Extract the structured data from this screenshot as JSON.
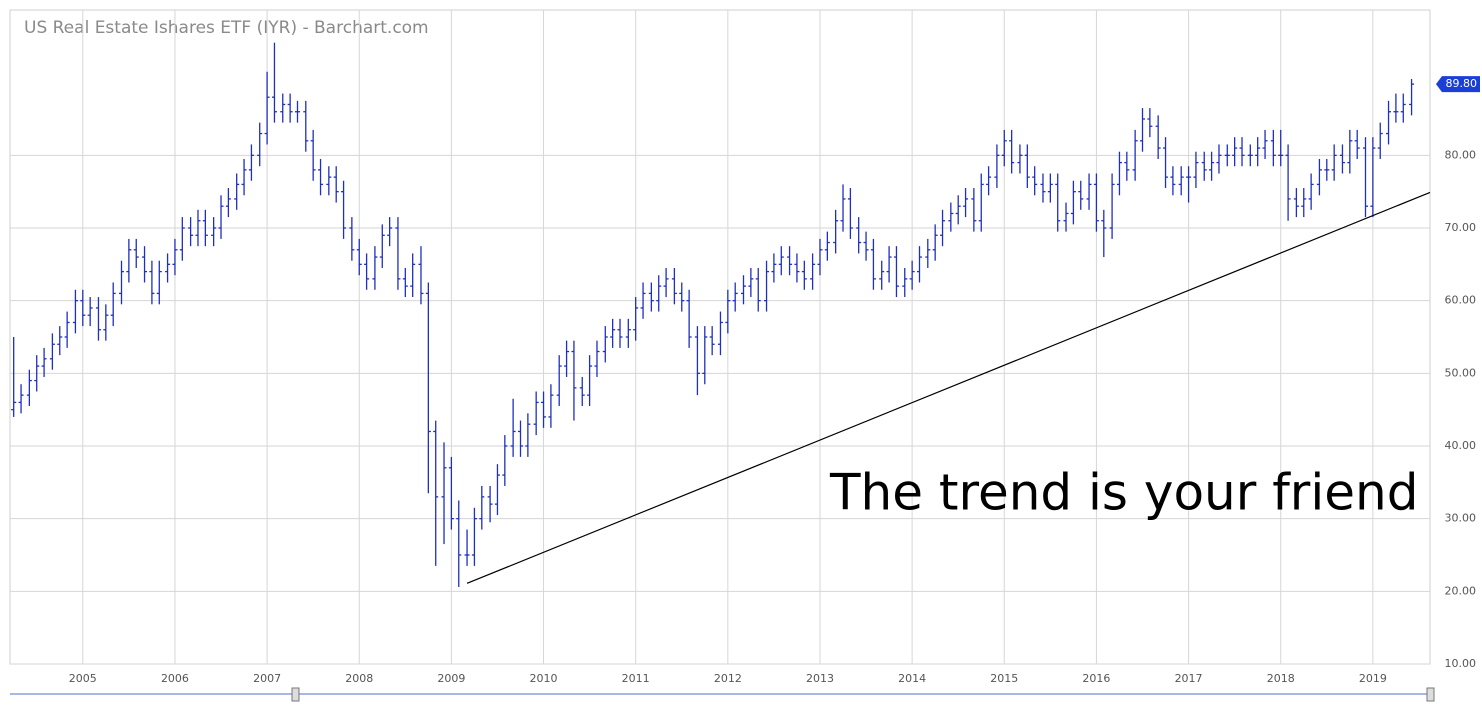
{
  "chart_data": {
    "type": "ohlc",
    "title": "US Real Estate Ishares ETF (IYR) - Barchart.com",
    "annotation": "The trend is your friend",
    "color": "#1f2fbf",
    "grid": true,
    "xlim": [
      2004.21,
      2019.62
    ],
    "xticks": [
      2005,
      2006,
      2007,
      2008,
      2009,
      2010,
      2011,
      2012,
      2013,
      2014,
      2015,
      2016,
      2017,
      2018,
      2019
    ],
    "ylim": [
      10,
      100
    ],
    "yticks": [
      {
        "value": 10,
        "label": "10.00"
      },
      {
        "value": 20,
        "label": "20.00"
      },
      {
        "value": 30,
        "label": "30.00"
      },
      {
        "value": 40,
        "label": "40.00"
      },
      {
        "value": 50,
        "label": "50.00"
      },
      {
        "value": 60,
        "label": "60.00"
      },
      {
        "value": 70,
        "label": "70.00"
      },
      {
        "value": 80,
        "label": "80.00"
      }
    ],
    "last_price": {
      "value": 89.8,
      "label": "89.80"
    },
    "trendline": {
      "x": [
        2009.17,
        2019.62
      ],
      "y": [
        21.1,
        74.9
      ]
    },
    "x": [
      2004.25,
      2004.33,
      2004.42,
      2004.5,
      2004.58,
      2004.67,
      2004.75,
      2004.83,
      2004.92,
      2005,
      2005.08,
      2005.17,
      2005.25,
      2005.33,
      2005.42,
      2005.5,
      2005.58,
      2005.67,
      2005.75,
      2005.83,
      2005.92,
      2006,
      2006.08,
      2006.17,
      2006.25,
      2006.33,
      2006.42,
      2006.5,
      2006.58,
      2006.67,
      2006.75,
      2006.83,
      2006.92,
      2007,
      2007.08,
      2007.17,
      2007.25,
      2007.33,
      2007.42,
      2007.5,
      2007.58,
      2007.67,
      2007.75,
      2007.83,
      2007.92,
      2008,
      2008.08,
      2008.17,
      2008.25,
      2008.33,
      2008.42,
      2008.5,
      2008.58,
      2008.67,
      2008.75,
      2008.83,
      2008.92,
      2009,
      2009.08,
      2009.17,
      2009.25,
      2009.33,
      2009.42,
      2009.5,
      2009.58,
      2009.67,
      2009.75,
      2009.83,
      2009.92,
      2010,
      2010.08,
      2010.17,
      2010.25,
      2010.33,
      2010.42,
      2010.5,
      2010.58,
      2010.67,
      2010.75,
      2010.83,
      2010.92,
      2011,
      2011.08,
      2011.17,
      2011.25,
      2011.33,
      2011.42,
      2011.5,
      2011.58,
      2011.67,
      2011.75,
      2011.83,
      2011.92,
      2012,
      2012.08,
      2012.17,
      2012.25,
      2012.33,
      2012.42,
      2012.5,
      2012.58,
      2012.67,
      2012.75,
      2012.83,
      2012.92,
      2013,
      2013.08,
      2013.17,
      2013.25,
      2013.33,
      2013.42,
      2013.5,
      2013.58,
      2013.67,
      2013.75,
      2013.83,
      2013.92,
      2014,
      2014.08,
      2014.17,
      2014.25,
      2014.33,
      2014.42,
      2014.5,
      2014.58,
      2014.67,
      2014.75,
      2014.83,
      2014.92,
      2015,
      2015.08,
      2015.17,
      2015.25,
      2015.33,
      2015.42,
      2015.5,
      2015.58,
      2015.67,
      2015.75,
      2015.83,
      2015.92,
      2016,
      2016.08,
      2016.17,
      2016.25,
      2016.33,
      2016.42,
      2016.5,
      2016.58,
      2016.67,
      2016.75,
      2016.83,
      2016.92,
      2017,
      2017.08,
      2017.17,
      2017.25,
      2017.33,
      2017.42,
      2017.5,
      2017.58,
      2017.67,
      2017.75,
      2017.83,
      2017.92,
      2018,
      2018.08,
      2018.17,
      2018.25,
      2018.33,
      2018.42,
      2018.5,
      2018.58,
      2018.67,
      2018.75,
      2018.83,
      2018.92,
      2019,
      2019.08,
      2019.17,
      2019.25,
      2019.33,
      2019.42
    ],
    "open": [
      45,
      46,
      47,
      49,
      51,
      52,
      54,
      55,
      57,
      60,
      58,
      59,
      56,
      58,
      61,
      64,
      67,
      66,
      64,
      61,
      64,
      65,
      67,
      70,
      69,
      71,
      69,
      70,
      73,
      74,
      76,
      78,
      80,
      83,
      88,
      86,
      87,
      86,
      86,
      82,
      78,
      76,
      77,
      75,
      70,
      67,
      65,
      63,
      66,
      69,
      70,
      63,
      62,
      65,
      61,
      42,
      33,
      37,
      30,
      25,
      25,
      30,
      33,
      32,
      36,
      40,
      42,
      40,
      43,
      46,
      44,
      47,
      51,
      53,
      48,
      47,
      51,
      53,
      55,
      56,
      55,
      56,
      59,
      61,
      60,
      62,
      63,
      61,
      60,
      55,
      50,
      55,
      54,
      57,
      60,
      61,
      62,
      63,
      60,
      64,
      65,
      66,
      65,
      64,
      63,
      65,
      67,
      68,
      71,
      74,
      70,
      68,
      67,
      63,
      64,
      66,
      62,
      63,
      64,
      66,
      67,
      69,
      71,
      72,
      73,
      74,
      71,
      76,
      77,
      80,
      82,
      79,
      80,
      77,
      76,
      75,
      76,
      71,
      72,
      75,
      74,
      76,
      71,
      70,
      76,
      79,
      78,
      82,
      85,
      84,
      81,
      77,
      76,
      77,
      77,
      79,
      78,
      79,
      80,
      80,
      81,
      80,
      80,
      81,
      82,
      80,
      80,
      74,
      73,
      74,
      76,
      78,
      78,
      80,
      79,
      82,
      81,
      73,
      81,
      83,
      86,
      86,
      87
    ],
    "high": [
      55,
      48.5,
      50.5,
      52.5,
      53.5,
      55.5,
      56.5,
      58.5,
      61.5,
      61.5,
      60.5,
      60.5,
      59.5,
      62.5,
      65.5,
      68.5,
      68.5,
      67.5,
      65.5,
      65.5,
      66.5,
      68.5,
      71.5,
      71.5,
      72.5,
      72.5,
      71.5,
      74.5,
      75.5,
      77.5,
      79.5,
      81.5,
      84.5,
      91.5,
      95.5,
      88.5,
      88.5,
      87.5,
      87.5,
      83.5,
      79.5,
      78.5,
      78.5,
      76.5,
      71.5,
      68.5,
      66.5,
      67.5,
      70.5,
      71.5,
      71.5,
      64.5,
      66.5,
      67.5,
      62.5,
      43.5,
      40.5,
      38.5,
      32.5,
      28.5,
      31.5,
      34.5,
      34.5,
      37.5,
      41.5,
      46.5,
      43.5,
      44.5,
      47.5,
      47.5,
      48.5,
      52.5,
      54.5,
      54.5,
      49.5,
      52.5,
      54.5,
      56.5,
      57.5,
      57.5,
      57.5,
      60.5,
      62.5,
      62.5,
      63.5,
      64.5,
      64.5,
      62.5,
      61.5,
      56.5,
      56.5,
      56.5,
      58.5,
      61.5,
      62.5,
      63.5,
      64.5,
      64.5,
      65.5,
      66.5,
      67.5,
      67.5,
      66.5,
      65.5,
      66.5,
      68.5,
      69.5,
      72.5,
      76,
      75.5,
      71.5,
      69.5,
      68.5,
      65.5,
      67.5,
      67.5,
      64.5,
      65.5,
      67.5,
      68.5,
      70.5,
      72.5,
      73.5,
      74.5,
      75.5,
      75.5,
      77.5,
      78.5,
      81.5,
      83.5,
      83.5,
      81.5,
      81.5,
      78.5,
      77.5,
      77.5,
      77.5,
      73.5,
      76.5,
      76.5,
      77.5,
      77.5,
      72.5,
      77.5,
      80.5,
      80.5,
      83.5,
      86.5,
      86.5,
      85.5,
      82.5,
      78.5,
      78.5,
      78.5,
      80.5,
      80.5,
      80.5,
      81.5,
      81.5,
      82.5,
      82.5,
      81.5,
      82.5,
      83.5,
      83.5,
      83.5,
      81.5,
      75.5,
      75.5,
      77.5,
      79.5,
      79.5,
      81.5,
      81.5,
      83.5,
      83.5,
      82.5,
      82.5,
      84.5,
      87.5,
      88.5,
      88.5,
      90.5
    ],
    "low": [
      44,
      44.5,
      45.5,
      47.5,
      49.5,
      50.5,
      52.5,
      53.5,
      55.5,
      56.5,
      56.5,
      54.5,
      54.5,
      56.5,
      59.5,
      62.5,
      64.5,
      62.5,
      59.5,
      59.5,
      62.5,
      63.5,
      65.5,
      67.5,
      67.5,
      67.5,
      67.5,
      68.5,
      71.5,
      72.5,
      74.5,
      76.5,
      78.5,
      81.5,
      84.5,
      84.5,
      84.5,
      84.5,
      80.5,
      76.5,
      74.5,
      74.5,
      73.5,
      68.5,
      65.5,
      63.5,
      61.5,
      61.5,
      64.5,
      67.5,
      61.5,
      60.5,
      60.5,
      59.5,
      33.5,
      23.5,
      26.5,
      28.5,
      20.6,
      23.5,
      23.5,
      28.5,
      29.5,
      30.5,
      34.5,
      38.5,
      38.5,
      38.5,
      41.5,
      42.5,
      42.5,
      45.5,
      49.5,
      43.5,
      45.5,
      45.5,
      49.5,
      51.5,
      53.5,
      53.5,
      53.5,
      54.5,
      57.5,
      58.5,
      58.5,
      60.5,
      59.5,
      58.5,
      53.5,
      47,
      48.5,
      52.5,
      52.5,
      55.5,
      58.5,
      59.5,
      60.5,
      58.5,
      58.5,
      62.5,
      63.5,
      63.5,
      62.5,
      61.5,
      61.5,
      63.5,
      65.5,
      66.5,
      69.5,
      68.5,
      66.5,
      65.5,
      61.5,
      61.5,
      62.5,
      60.5,
      60.5,
      61.5,
      62.5,
      64.5,
      65.5,
      67.5,
      69.5,
      70.5,
      71.5,
      69.5,
      69.5,
      74.5,
      75.5,
      78.5,
      77.5,
      77.5,
      75.5,
      74.5,
      73.5,
      73.5,
      69.5,
      69.5,
      70.5,
      72.5,
      72.5,
      69.5,
      66,
      68.5,
      74.5,
      76.5,
      76.5,
      80.5,
      82.5,
      79.5,
      75.5,
      74.5,
      74.5,
      73.5,
      75.5,
      76.5,
      76.5,
      77.5,
      78.5,
      78.5,
      78.5,
      78.5,
      78.5,
      79.5,
      78.5,
      78.5,
      71,
      71.5,
      71.5,
      72.5,
      74.5,
      76.5,
      76.5,
      77.5,
      77.5,
      79.5,
      71.5,
      71.5,
      79.5,
      81.5,
      84.5,
      84.5,
      85.5
    ],
    "close": [
      46,
      47,
      49,
      51,
      52,
      54,
      55,
      57,
      60,
      58,
      59,
      56,
      58,
      61,
      64,
      67,
      66,
      64,
      61,
      64,
      65,
      67,
      70,
      69,
      71,
      69,
      70,
      73,
      74,
      76,
      78,
      80,
      83,
      88,
      86,
      87,
      86,
      86,
      82,
      78,
      76,
      77,
      75,
      70,
      67,
      65,
      63,
      66,
      69,
      70,
      63,
      62,
      65,
      61,
      42,
      33,
      37,
      30,
      25,
      25,
      30,
      33,
      32,
      36,
      40,
      42,
      40,
      43,
      46,
      44,
      47,
      51,
      53,
      48,
      47,
      51,
      53,
      55,
      56,
      55,
      56,
      59,
      61,
      60,
      62,
      63,
      61,
      60,
      55,
      50,
      55,
      54,
      57,
      60,
      61,
      62,
      63,
      60,
      64,
      65,
      66,
      65,
      64,
      63,
      65,
      67,
      68,
      71,
      74,
      70,
      68,
      67,
      63,
      64,
      66,
      62,
      63,
      64,
      66,
      67,
      69,
      71,
      72,
      73,
      74,
      71,
      76,
      77,
      80,
      82,
      79,
      80,
      77,
      76,
      75,
      76,
      71,
      72,
      75,
      74,
      76,
      71,
      70,
      76,
      79,
      78,
      82,
      85,
      84,
      81,
      77,
      76,
      77,
      77,
      79,
      78,
      79,
      80,
      80,
      81,
      80,
      80,
      81,
      82,
      80,
      80,
      74,
      73,
      74,
      76,
      78,
      78,
      80,
      79,
      82,
      81,
      73,
      81,
      83,
      86,
      86,
      87,
      89.8
    ]
  }
}
